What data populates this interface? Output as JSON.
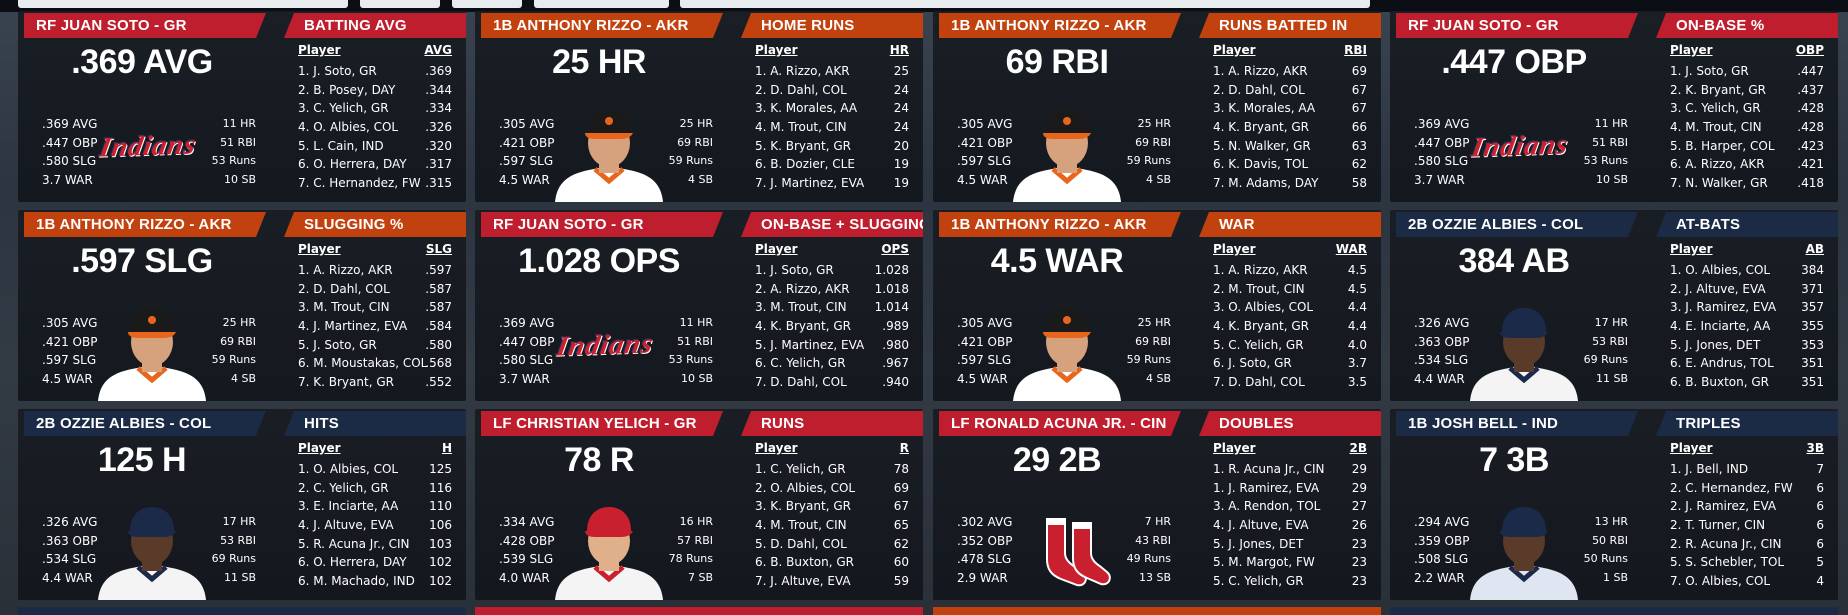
{
  "colors": {
    "GR": "#bf1e2e",
    "AKR": "#c2420f",
    "COL": "#1b2a45",
    "IND": "#1b2a45",
    "CIN": "#c2420f",
    "header_text": "#ffffff"
  },
  "cards": [
    {
      "id": "batting-avg",
      "player_header": "RF JUAN SOTO - GR",
      "team": "GR",
      "leader_stat": ".369 AVG",
      "left_stats": [
        ".369 AVG",
        ".447 OBP",
        ".580 SLG",
        "3.7 WAR"
      ],
      "right_stats": [
        "11 HR",
        "51 RBI",
        "53 Runs",
        "10 SB"
      ],
      "image": {
        "type": "logo",
        "text": "Indians"
      },
      "category": "BATTING AVG",
      "category_team": "GR",
      "col_player": "Player",
      "col_stat": "AVG",
      "rows": [
        {
          "name": "1. J. Soto, GR",
          "value": ".369"
        },
        {
          "name": "2. B. Posey, DAY",
          "value": ".344"
        },
        {
          "name": "3. C. Yelich, GR",
          "value": ".334"
        },
        {
          "name": "4. O. Albies, COL",
          "value": ".326"
        },
        {
          "name": "5. L. Cain, IND",
          "value": ".320"
        },
        {
          "name": "6. O. Herrera, DAY",
          "value": ".317"
        },
        {
          "name": "7. C. Hernandez, FW",
          "value": ".315"
        }
      ]
    },
    {
      "id": "home-runs",
      "player_header": "1B ANTHONY RIZZO - AKR",
      "team": "AKR",
      "leader_stat": "25 HR",
      "left_stats": [
        ".305 AVG",
        ".421 OBP",
        ".597 SLG",
        "4.5 WAR"
      ],
      "right_stats": [
        "25 HR",
        "69 RBI",
        "59 Runs",
        "4 SB"
      ],
      "image": {
        "type": "player",
        "cap": "#1a1a1a",
        "bill": "#e8661c",
        "jersey": "#ffffff",
        "trim": "#e8661c",
        "skin": "#d6a27e"
      },
      "category": "HOME RUNS",
      "category_team": "AKR",
      "col_player": "Player",
      "col_stat": "HR",
      "rows": [
        {
          "name": "1. A. Rizzo, AKR",
          "value": "25"
        },
        {
          "name": "2. D. Dahl, COL",
          "value": "24"
        },
        {
          "name": "3. K. Morales, AA",
          "value": "24"
        },
        {
          "name": "4. M. Trout, CIN",
          "value": "24"
        },
        {
          "name": "5. K. Bryant, GR",
          "value": "20"
        },
        {
          "name": "6. B. Dozier, CLE",
          "value": "19"
        },
        {
          "name": "7. J. Martinez, EVA",
          "value": "19"
        }
      ]
    },
    {
      "id": "runs-batted-in",
      "player_header": "1B ANTHONY RIZZO - AKR",
      "team": "AKR",
      "leader_stat": "69 RBI",
      "left_stats": [
        ".305 AVG",
        ".421 OBP",
        ".597 SLG",
        "4.5 WAR"
      ],
      "right_stats": [
        "25 HR",
        "69 RBI",
        "59 Runs",
        "4 SB"
      ],
      "image": {
        "type": "player",
        "cap": "#1a1a1a",
        "bill": "#e8661c",
        "jersey": "#ffffff",
        "trim": "#e8661c",
        "skin": "#d6a27e"
      },
      "category": "RUNS BATTED IN",
      "category_team": "AKR",
      "col_player": "Player",
      "col_stat": "RBI",
      "rows": [
        {
          "name": "1. A. Rizzo, AKR",
          "value": "69"
        },
        {
          "name": "2. D. Dahl, COL",
          "value": "67"
        },
        {
          "name": "3. K. Morales, AA",
          "value": "67"
        },
        {
          "name": "4. K. Bryant, GR",
          "value": "66"
        },
        {
          "name": "5. N. Walker, GR",
          "value": "63"
        },
        {
          "name": "6. K. Davis, TOL",
          "value": "62"
        },
        {
          "name": "7. M. Adams, DAY",
          "value": "58"
        }
      ]
    },
    {
      "id": "on-base-pct",
      "player_header": "RF JUAN SOTO - GR",
      "team": "GR",
      "leader_stat": ".447 OBP",
      "left_stats": [
        ".369 AVG",
        ".447 OBP",
        ".580 SLG",
        "3.7 WAR"
      ],
      "right_stats": [
        "11 HR",
        "51 RBI",
        "53 Runs",
        "10 SB"
      ],
      "image": {
        "type": "logo",
        "text": "Indians"
      },
      "category": "ON-BASE %",
      "category_team": "GR",
      "col_player": "Player",
      "col_stat": "OBP",
      "rows": [
        {
          "name": "1. J. Soto, GR",
          "value": ".447"
        },
        {
          "name": "2. K. Bryant, GR",
          "value": ".437"
        },
        {
          "name": "3. C. Yelich, GR",
          "value": ".428"
        },
        {
          "name": "4. M. Trout, CIN",
          "value": ".428"
        },
        {
          "name": "5. B. Harper, COL",
          "value": ".423"
        },
        {
          "name": "6. A. Rizzo, AKR",
          "value": ".421"
        },
        {
          "name": "7. N. Walker, GR",
          "value": ".418"
        }
      ]
    },
    {
      "id": "slugging-pct",
      "player_header": "1B ANTHONY RIZZO - AKR",
      "team": "AKR",
      "leader_stat": ".597 SLG",
      "left_stats": [
        ".305 AVG",
        ".421 OBP",
        ".597 SLG",
        "4.5 WAR"
      ],
      "right_stats": [
        "25 HR",
        "69 RBI",
        "59 Runs",
        "4 SB"
      ],
      "image": {
        "type": "player",
        "cap": "#1a1a1a",
        "bill": "#e8661c",
        "jersey": "#ffffff",
        "trim": "#e8661c",
        "skin": "#d6a27e"
      },
      "category": "SLUGGING %",
      "category_team": "AKR",
      "col_player": "Player",
      "col_stat": "SLG",
      "rows": [
        {
          "name": "1. A. Rizzo, AKR",
          "value": ".597"
        },
        {
          "name": "2. D. Dahl, COL",
          "value": ".587"
        },
        {
          "name": "3. M. Trout, CIN",
          "value": ".587"
        },
        {
          "name": "4. J. Martinez, EVA",
          "value": ".584"
        },
        {
          "name": "5. J. Soto, GR",
          "value": ".580"
        },
        {
          "name": "6. M. Moustakas, COL",
          "value": ".568"
        },
        {
          "name": "7. K. Bryant, GR",
          "value": ".552"
        }
      ]
    },
    {
      "id": "ops",
      "player_header": "RF JUAN SOTO - GR",
      "team": "GR",
      "leader_stat": "1.028 OPS",
      "left_stats": [
        ".369 AVG",
        ".447 OBP",
        ".580 SLG",
        "3.7 WAR"
      ],
      "right_stats": [
        "11 HR",
        "51 RBI",
        "53 Runs",
        "10 SB"
      ],
      "image": {
        "type": "logo",
        "text": "Indians"
      },
      "category": "ON-BASE + SLUGGING",
      "category_team": "GR",
      "col_player": "Player",
      "col_stat": "OPS",
      "rows": [
        {
          "name": "1. J. Soto, GR",
          "value": "1.028"
        },
        {
          "name": "2. A. Rizzo, AKR",
          "value": "1.018"
        },
        {
          "name": "3. M. Trout, CIN",
          "value": "1.014"
        },
        {
          "name": "4. K. Bryant, GR",
          "value": ".989"
        },
        {
          "name": "5. J. Martinez, EVA",
          "value": ".980"
        },
        {
          "name": "6. C. Yelich, GR",
          "value": ".967"
        },
        {
          "name": "7. D. Dahl, COL",
          "value": ".940"
        }
      ]
    },
    {
      "id": "war",
      "player_header": "1B ANTHONY RIZZO - AKR",
      "team": "AKR",
      "leader_stat": "4.5 WAR",
      "left_stats": [
        ".305 AVG",
        ".421 OBP",
        ".597 SLG",
        "4.5 WAR"
      ],
      "right_stats": [
        "25 HR",
        "69 RBI",
        "59 Runs",
        "4 SB"
      ],
      "image": {
        "type": "player",
        "cap": "#1a1a1a",
        "bill": "#e8661c",
        "jersey": "#ffffff",
        "trim": "#e8661c",
        "skin": "#d6a27e"
      },
      "category": "WAR",
      "category_team": "AKR",
      "col_player": "Player",
      "col_stat": "WAR",
      "rows": [
        {
          "name": "1. A. Rizzo, AKR",
          "value": "4.5"
        },
        {
          "name": "2. M. Trout, CIN",
          "value": "4.5"
        },
        {
          "name": "3. O. Albies, COL",
          "value": "4.4"
        },
        {
          "name": "4. K. Bryant, GR",
          "value": "4.4"
        },
        {
          "name": "5. C. Yelich, GR",
          "value": "4.0"
        },
        {
          "name": "6. J. Soto, GR",
          "value": "3.7"
        },
        {
          "name": "7. D. Dahl, COL",
          "value": "3.5"
        }
      ]
    },
    {
      "id": "at-bats",
      "player_header": "2B OZZIE ALBIES - COL",
      "team": "COL",
      "leader_stat": "384 AB",
      "left_stats": [
        ".326 AVG",
        ".363 OBP",
        ".534 SLG",
        "4.4 WAR"
      ],
      "right_stats": [
        "17 HR",
        "53 RBI",
        "69 Runs",
        "11 SB"
      ],
      "image": {
        "type": "player",
        "cap": "#1c2a4a",
        "bill": "#1c2a4a",
        "jersey": "#f4f4f4",
        "trim": "#1c2a4a",
        "skin": "#5a3a28"
      },
      "category": "AT-BATS",
      "category_team": "COL",
      "col_player": "Player",
      "col_stat": "AB",
      "rows": [
        {
          "name": "1. O. Albies, COL",
          "value": "384"
        },
        {
          "name": "2. J. Altuve, EVA",
          "value": "371"
        },
        {
          "name": "3. J. Ramirez, EVA",
          "value": "357"
        },
        {
          "name": "4. E. Inciarte, AA",
          "value": "355"
        },
        {
          "name": "5. J. Jones, DET",
          "value": "353"
        },
        {
          "name": "6. E. Andrus, TOL",
          "value": "351"
        },
        {
          "name": "6. B. Buxton, GR",
          "value": "351"
        }
      ]
    },
    {
      "id": "hits",
      "player_header": "2B OZZIE ALBIES - COL",
      "team": "COL",
      "leader_stat": "125 H",
      "left_stats": [
        ".326 AVG",
        ".363 OBP",
        ".534 SLG",
        "4.4 WAR"
      ],
      "right_stats": [
        "17 HR",
        "53 RBI",
        "69 Runs",
        "11 SB"
      ],
      "image": {
        "type": "player",
        "cap": "#1c2a4a",
        "bill": "#1c2a4a",
        "jersey": "#f4f4f4",
        "trim": "#1c2a4a",
        "skin": "#5a3a28"
      },
      "category": "HITS",
      "category_team": "COL",
      "col_player": "Player",
      "col_stat": "H",
      "rows": [
        {
          "name": "1. O. Albies, COL",
          "value": "125"
        },
        {
          "name": "2. C. Yelich, GR",
          "value": "116"
        },
        {
          "name": "3. E. Inciarte, AA",
          "value": "110"
        },
        {
          "name": "4. J. Altuve, EVA",
          "value": "106"
        },
        {
          "name": "5. R. Acuna Jr., CIN",
          "value": "103"
        },
        {
          "name": "6. O. Herrera, DAY",
          "value": "102"
        },
        {
          "name": "6. M. Machado, IND",
          "value": "102"
        }
      ]
    },
    {
      "id": "runs",
      "player_header": "LF CHRISTIAN YELICH - GR",
      "team": "GR",
      "leader_stat": "78 R",
      "left_stats": [
        ".334 AVG",
        ".428 OBP",
        ".539 SLG",
        "4.0 WAR"
      ],
      "right_stats": [
        "16 HR",
        "57 RBI",
        "78 Runs",
        "7 SB"
      ],
      "image": {
        "type": "player",
        "cap": "#c8202e",
        "bill": "#c8202e",
        "jersey": "#f4f4f4",
        "trim": "#c8202e",
        "skin": "#e0b08a"
      },
      "category": "RUNS",
      "category_team": "GR",
      "col_player": "Player",
      "col_stat": "R",
      "rows": [
        {
          "name": "1. C. Yelich, GR",
          "value": "78"
        },
        {
          "name": "2. O. Albies, COL",
          "value": "69"
        },
        {
          "name": "3. K. Bryant, GR",
          "value": "67"
        },
        {
          "name": "4. M. Trout, CIN",
          "value": "65"
        },
        {
          "name": "5. D. Dahl, COL",
          "value": "62"
        },
        {
          "name": "6. B. Buxton, GR",
          "value": "60"
        },
        {
          "name": "7. J. Altuve, EVA",
          "value": "59"
        }
      ]
    },
    {
      "id": "doubles",
      "player_header": "LF RONALD ACUNA JR. - CIN",
      "team": "GR",
      "leader_stat": "29 2B",
      "left_stats": [
        ".302 AVG",
        ".352 OBP",
        ".478 SLG",
        "2.9 WAR"
      ],
      "right_stats": [
        "7 HR",
        "43 RBI",
        "49 Runs",
        "13 SB"
      ],
      "image": {
        "type": "socks"
      },
      "category": "DOUBLES",
      "category_team": "GR",
      "col_player": "Player",
      "col_stat": "2B",
      "rows": [
        {
          "name": "1. R. Acuna Jr., CIN",
          "value": "29"
        },
        {
          "name": "1. J. Ramirez, EVA",
          "value": "29"
        },
        {
          "name": "3. A. Rendon, TOL",
          "value": "27"
        },
        {
          "name": "4. J. Altuve, EVA",
          "value": "26"
        },
        {
          "name": "5. J. Jones, DET",
          "value": "23"
        },
        {
          "name": "5. M. Margot, FW",
          "value": "23"
        },
        {
          "name": "5. C. Yelich, GR",
          "value": "23"
        }
      ]
    },
    {
      "id": "triples",
      "player_header": "1B JOSH BELL - IND",
      "team": "COL",
      "leader_stat": "7 3B",
      "left_stats": [
        ".294 AVG",
        ".359 OBP",
        ".508 SLG",
        "2.2 WAR"
      ],
      "right_stats": [
        "13 HR",
        "50 RBI",
        "50 Runs",
        "1 SB"
      ],
      "image": {
        "type": "player",
        "cap": "#1c2a4a",
        "bill": "#1c2a4a",
        "jersey": "#dfe6f2",
        "trim": "#1c2a4a",
        "skin": "#5a3a28"
      },
      "category": "TRIPLES",
      "category_team": "COL",
      "col_player": "Player",
      "col_stat": "3B",
      "rows": [
        {
          "name": "1. J. Bell, IND",
          "value": "7"
        },
        {
          "name": "2. C. Hernandez, FW",
          "value": "6"
        },
        {
          "name": "2. J. Ramirez, EVA",
          "value": "6"
        },
        {
          "name": "2. T. Turner, CIN",
          "value": "6"
        },
        {
          "name": "2. R. Acuna Jr., CIN",
          "value": "6"
        },
        {
          "name": "5. S. Schebler, TOL",
          "value": "5"
        },
        {
          "name": "7. O. Albies, COL",
          "value": "4"
        }
      ]
    }
  ]
}
